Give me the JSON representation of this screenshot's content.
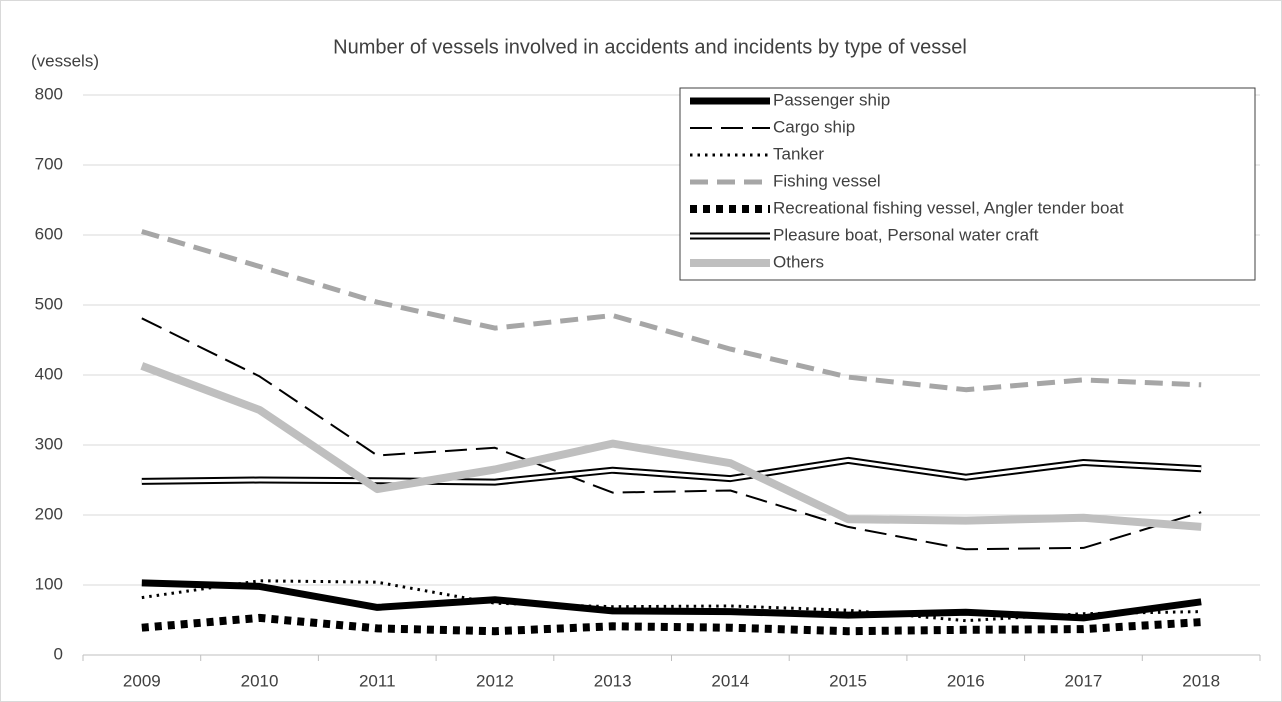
{
  "chart_data": {
    "type": "line",
    "title": "Number of vessels involved in accidents and incidents by type of vessel",
    "y_label": "(vessels)",
    "categories": [
      "2009",
      "2010",
      "2011",
      "2012",
      "2013",
      "2014",
      "2015",
      "2016",
      "2017",
      "2018"
    ],
    "ylim": [
      0,
      800
    ],
    "yticks": [
      0,
      100,
      200,
      300,
      400,
      500,
      600,
      700,
      800
    ],
    "grid": true,
    "legend": "top-right",
    "series": [
      {
        "name": "Passenger ship",
        "color": "#000000",
        "style": "thick",
        "values": [
          103,
          98,
          68,
          79,
          63,
          62,
          57,
          61,
          53,
          76
        ]
      },
      {
        "name": "Cargo ship",
        "color": "#000000",
        "style": "dashed",
        "values": [
          481,
          398,
          285,
          296,
          232,
          235,
          183,
          151,
          153,
          204
        ]
      },
      {
        "name": "Tanker",
        "color": "#000000",
        "style": "dotted",
        "values": [
          82,
          106,
          104,
          74,
          69,
          70,
          64,
          49,
          59,
          62
        ]
      },
      {
        "name": "Fishing vessel",
        "color": "#a6a6a6",
        "style": "thick-dashed",
        "values": [
          605,
          555,
          504,
          467,
          485,
          437,
          397,
          379,
          393,
          386
        ]
      },
      {
        "name": "Recreational fishing vessel, Angler tender boat",
        "color": "#000000",
        "style": "thick-dotted",
        "values": [
          39,
          53,
          38,
          34,
          41,
          39,
          34,
          36,
          37,
          47
        ]
      },
      {
        "name": "Pleasure boat, Personal water craft",
        "color": "#000000",
        "style": "double",
        "values": [
          248,
          250,
          249,
          247,
          264,
          252,
          278,
          254,
          275,
          266
        ]
      },
      {
        "name": "Others",
        "color": "#bfbfbf",
        "style": "extra-thick",
        "values": [
          413,
          350,
          237,
          265,
          302,
          274,
          194,
          192,
          196,
          183
        ]
      }
    ]
  }
}
